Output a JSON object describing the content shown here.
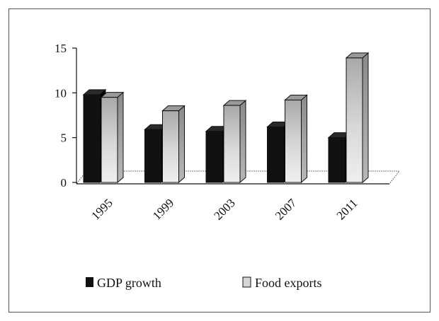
{
  "chart_data": {
    "type": "bar",
    "categories": [
      "1995",
      "1999",
      "2003",
      "2007",
      "2011"
    ],
    "series": [
      {
        "name": "GDP growth",
        "values": [
          9.8,
          5.9,
          5.7,
          6.2,
          5.0
        ],
        "color": "#111111"
      },
      {
        "name": "Food exports",
        "values": [
          9.5,
          8.0,
          8.6,
          9.2,
          13.9
        ],
        "color": "#c9c9c9"
      }
    ],
    "yticks": [
      "0",
      "5",
      "10",
      "15"
    ],
    "ylim": [
      0,
      15
    ],
    "grid": false,
    "legend_position": "bottom",
    "style": "3d-column"
  }
}
